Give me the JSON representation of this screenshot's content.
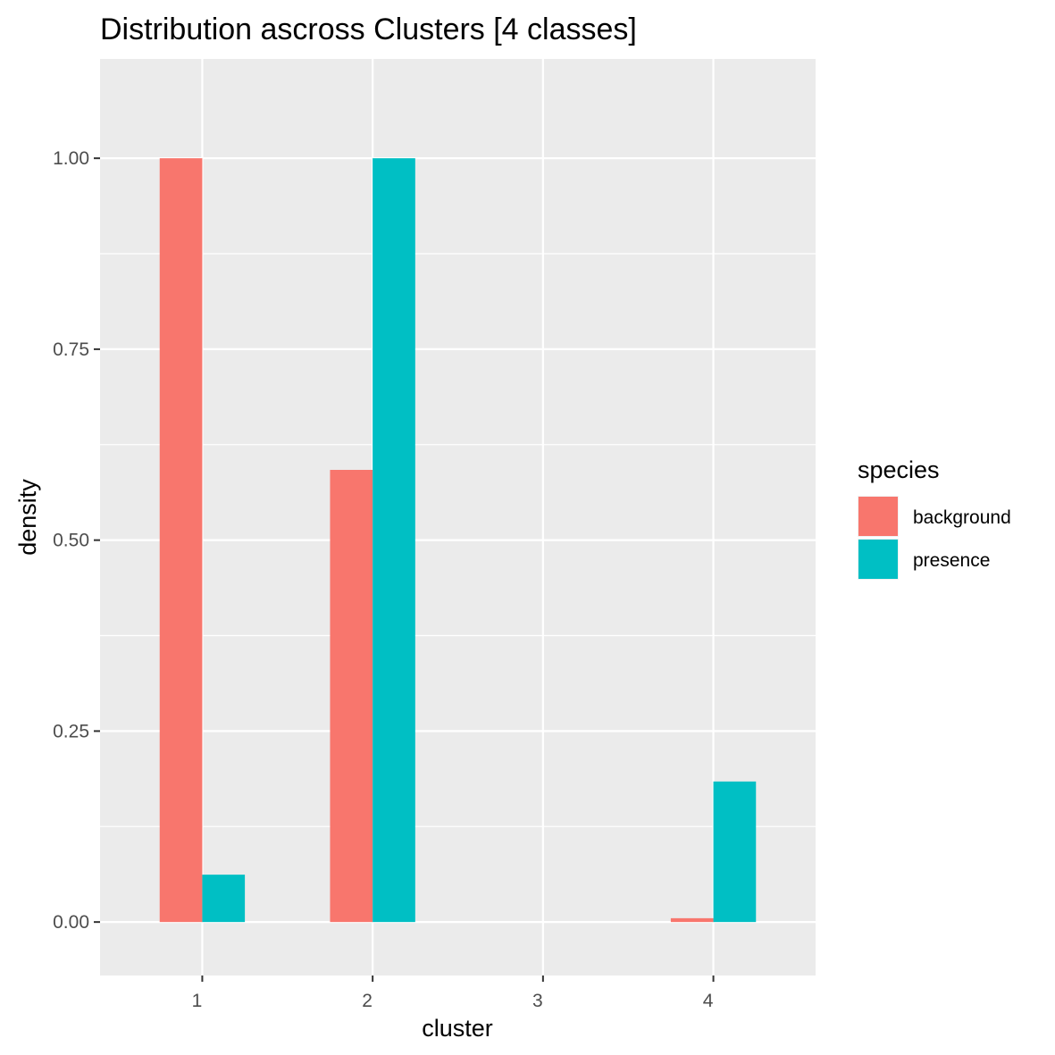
{
  "chart_data": {
    "type": "bar",
    "title": "Distribution ascross Clusters [4 classes]",
    "xlabel": "cluster",
    "ylabel": "density",
    "categories": [
      "1",
      "2",
      "3",
      "4"
    ],
    "ylim": [
      -0.07,
      1.13
    ],
    "yticks": [
      0.0,
      0.25,
      0.5,
      0.75,
      1.0
    ],
    "ytick_labels": [
      "0.00",
      "0.25",
      "0.50",
      "0.75",
      "1.00"
    ],
    "grid": true,
    "legend": {
      "title": "species",
      "position": "right"
    },
    "series": [
      {
        "name": "background",
        "color": "#F8766D",
        "values": [
          1.0,
          0.592,
          0.0,
          0.005
        ]
      },
      {
        "name": "presence",
        "color": "#00BFC4",
        "values": [
          0.062,
          1.0,
          0.0,
          0.184
        ]
      }
    ],
    "panel_background": "#EBEBEB",
    "grid_color": "#FFFFFF"
  }
}
